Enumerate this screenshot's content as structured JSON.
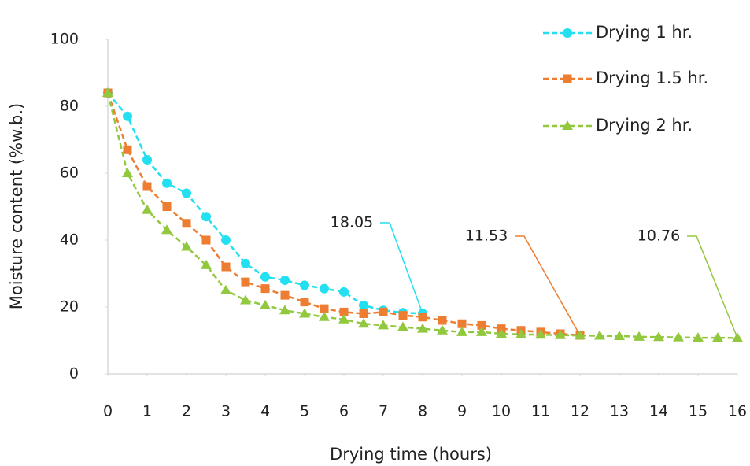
{
  "chart_data": {
    "type": "line",
    "x_label": "Drying time (hours)",
    "y_label": "Moisture content (%w.b.)",
    "x": [
      0,
      0.5,
      1,
      1.5,
      2,
      2.5,
      3,
      3.5,
      4,
      4.5,
      5,
      5.5,
      6,
      6.5,
      7,
      7.5,
      8,
      8.5,
      9,
      9.5,
      10,
      10.5,
      11,
      11.5,
      12,
      12.5,
      13,
      13.5,
      14,
      14.5,
      15,
      15.5,
      16
    ],
    "series": [
      {
        "name": "Drying 1 hr.",
        "color": "#22e0ef",
        "marker": "circle",
        "values": [
          84,
          77,
          64,
          57,
          54,
          47,
          40,
          33,
          29,
          28,
          26.5,
          25.5,
          24.5,
          20.5,
          19,
          18.3,
          18.05,
          null,
          null,
          null,
          null,
          null,
          null,
          null,
          null,
          null,
          null,
          null,
          null,
          null,
          null,
          null,
          null
        ]
      },
      {
        "name": "Drying 1.5 hr.",
        "color": "#ed7d31",
        "marker": "square",
        "values": [
          84,
          67,
          56,
          50,
          45,
          40,
          32,
          27.5,
          25.5,
          23.5,
          21.5,
          19.5,
          18.5,
          18,
          18.5,
          17.5,
          17,
          16,
          15,
          14.5,
          13.5,
          13,
          12.5,
          12,
          11.53,
          null,
          null,
          null,
          null,
          null,
          null,
          null,
          null
        ]
      },
      {
        "name": "Drying 2 hr.",
        "color": "#92c83e",
        "marker": "triangle",
        "values": [
          84,
          60,
          49,
          43,
          38,
          32.5,
          25,
          22,
          20.5,
          19,
          18,
          17,
          16.3,
          15,
          14.5,
          14,
          13.5,
          13,
          12.5,
          12.5,
          12,
          11.8,
          11.7,
          11.6,
          11.5,
          11.4,
          11.3,
          11.1,
          11,
          10.9,
          10.8,
          10.8,
          10.76
        ]
      }
    ],
    "xlim": [
      0,
      16
    ],
    "xticks": [
      0,
      1,
      2,
      3,
      4,
      5,
      6,
      7,
      8,
      9,
      10,
      11,
      12,
      13,
      14,
      15,
      16
    ],
    "ylim": [
      0,
      100
    ],
    "yticks": [
      0,
      20,
      40,
      60,
      80,
      100
    ],
    "grid": false,
    "legend": "top-right"
  }
}
